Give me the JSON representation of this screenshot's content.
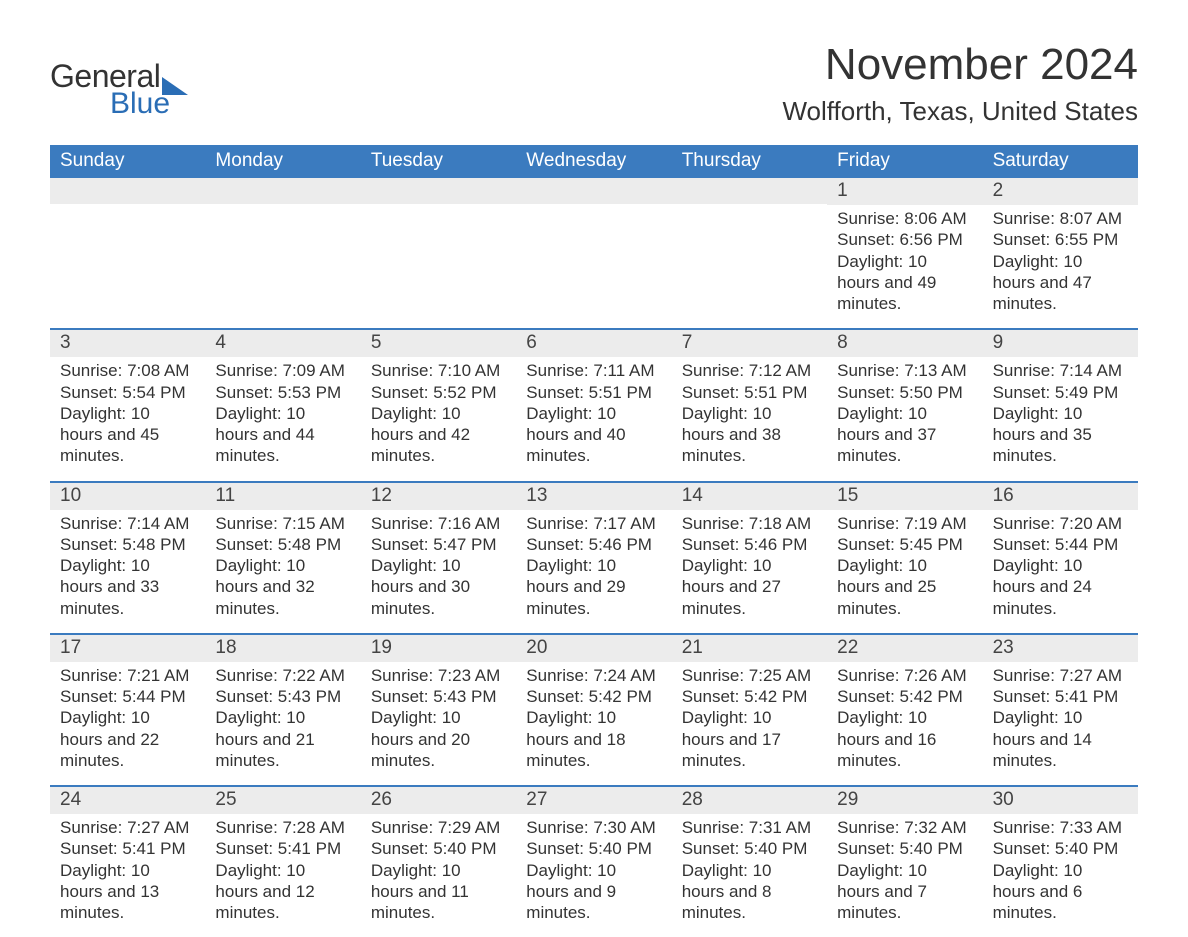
{
  "logo": {
    "text1": "General",
    "text2": "Blue"
  },
  "title": {
    "month": "November 2024",
    "location": "Wolfforth, Texas, United States"
  },
  "colors": {
    "brand_blue": "#3b7bbf",
    "logo_blue": "#2a6db5",
    "background": "#ffffff",
    "text": "#333333",
    "daybar_bg": "#ececec"
  },
  "day_headers": [
    "Sunday",
    "Monday",
    "Tuesday",
    "Wednesday",
    "Thursday",
    "Friday",
    "Saturday"
  ],
  "weeks": [
    [
      {
        "blank": true
      },
      {
        "blank": true
      },
      {
        "blank": true
      },
      {
        "blank": true
      },
      {
        "blank": true
      },
      {
        "n": "1",
        "sunrise": "8:06 AM",
        "sunset": "6:56 PM",
        "daylight": "10 hours and 49 minutes."
      },
      {
        "n": "2",
        "sunrise": "8:07 AM",
        "sunset": "6:55 PM",
        "daylight": "10 hours and 47 minutes."
      }
    ],
    [
      {
        "n": "3",
        "sunrise": "7:08 AM",
        "sunset": "5:54 PM",
        "daylight": "10 hours and 45 minutes."
      },
      {
        "n": "4",
        "sunrise": "7:09 AM",
        "sunset": "5:53 PM",
        "daylight": "10 hours and 44 minutes."
      },
      {
        "n": "5",
        "sunrise": "7:10 AM",
        "sunset": "5:52 PM",
        "daylight": "10 hours and 42 minutes."
      },
      {
        "n": "6",
        "sunrise": "7:11 AM",
        "sunset": "5:51 PM",
        "daylight": "10 hours and 40 minutes."
      },
      {
        "n": "7",
        "sunrise": "7:12 AM",
        "sunset": "5:51 PM",
        "daylight": "10 hours and 38 minutes."
      },
      {
        "n": "8",
        "sunrise": "7:13 AM",
        "sunset": "5:50 PM",
        "daylight": "10 hours and 37 minutes."
      },
      {
        "n": "9",
        "sunrise": "7:14 AM",
        "sunset": "5:49 PM",
        "daylight": "10 hours and 35 minutes."
      }
    ],
    [
      {
        "n": "10",
        "sunrise": "7:14 AM",
        "sunset": "5:48 PM",
        "daylight": "10 hours and 33 minutes."
      },
      {
        "n": "11",
        "sunrise": "7:15 AM",
        "sunset": "5:48 PM",
        "daylight": "10 hours and 32 minutes."
      },
      {
        "n": "12",
        "sunrise": "7:16 AM",
        "sunset": "5:47 PM",
        "daylight": "10 hours and 30 minutes."
      },
      {
        "n": "13",
        "sunrise": "7:17 AM",
        "sunset": "5:46 PM",
        "daylight": "10 hours and 29 minutes."
      },
      {
        "n": "14",
        "sunrise": "7:18 AM",
        "sunset": "5:46 PM",
        "daylight": "10 hours and 27 minutes."
      },
      {
        "n": "15",
        "sunrise": "7:19 AM",
        "sunset": "5:45 PM",
        "daylight": "10 hours and 25 minutes."
      },
      {
        "n": "16",
        "sunrise": "7:20 AM",
        "sunset": "5:44 PM",
        "daylight": "10 hours and 24 minutes."
      }
    ],
    [
      {
        "n": "17",
        "sunrise": "7:21 AM",
        "sunset": "5:44 PM",
        "daylight": "10 hours and 22 minutes."
      },
      {
        "n": "18",
        "sunrise": "7:22 AM",
        "sunset": "5:43 PM",
        "daylight": "10 hours and 21 minutes."
      },
      {
        "n": "19",
        "sunrise": "7:23 AM",
        "sunset": "5:43 PM",
        "daylight": "10 hours and 20 minutes."
      },
      {
        "n": "20",
        "sunrise": "7:24 AM",
        "sunset": "5:42 PM",
        "daylight": "10 hours and 18 minutes."
      },
      {
        "n": "21",
        "sunrise": "7:25 AM",
        "sunset": "5:42 PM",
        "daylight": "10 hours and 17 minutes."
      },
      {
        "n": "22",
        "sunrise": "7:26 AM",
        "sunset": "5:42 PM",
        "daylight": "10 hours and 16 minutes."
      },
      {
        "n": "23",
        "sunrise": "7:27 AM",
        "sunset": "5:41 PM",
        "daylight": "10 hours and 14 minutes."
      }
    ],
    [
      {
        "n": "24",
        "sunrise": "7:27 AM",
        "sunset": "5:41 PM",
        "daylight": "10 hours and 13 minutes."
      },
      {
        "n": "25",
        "sunrise": "7:28 AM",
        "sunset": "5:41 PM",
        "daylight": "10 hours and 12 minutes."
      },
      {
        "n": "26",
        "sunrise": "7:29 AM",
        "sunset": "5:40 PM",
        "daylight": "10 hours and 11 minutes."
      },
      {
        "n": "27",
        "sunrise": "7:30 AM",
        "sunset": "5:40 PM",
        "daylight": "10 hours and 9 minutes."
      },
      {
        "n": "28",
        "sunrise": "7:31 AM",
        "sunset": "5:40 PM",
        "daylight": "10 hours and 8 minutes."
      },
      {
        "n": "29",
        "sunrise": "7:32 AM",
        "sunset": "5:40 PM",
        "daylight": "10 hours and 7 minutes."
      },
      {
        "n": "30",
        "sunrise": "7:33 AM",
        "sunset": "5:40 PM",
        "daylight": "10 hours and 6 minutes."
      }
    ]
  ],
  "labels": {
    "sunrise": "Sunrise: ",
    "sunset": "Sunset: ",
    "daylight": "Daylight: "
  }
}
